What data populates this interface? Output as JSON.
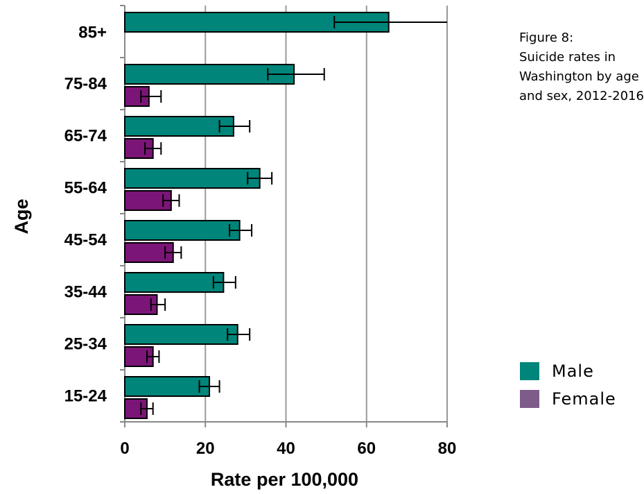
{
  "caption": {
    "lines": [
      "Figure 8:",
      "Suicide rates in",
      "Washington by age",
      "and sex, 2012-2016"
    ]
  },
  "colors": {
    "male": "#00857A",
    "female": "#7B1577",
    "female_legend": "#7E5C8A",
    "grid": "#999999",
    "axis": "#888888"
  },
  "chart_data": {
    "type": "bar",
    "orientation": "horizontal",
    "categories": [
      "85+",
      "75-84",
      "65-74",
      "55-64",
      "45-54",
      "35-44",
      "25-34",
      "15-24"
    ],
    "series": [
      {
        "name": "Male",
        "values": [
          65.5,
          42.0,
          27.0,
          33.5,
          28.5,
          24.5,
          28.0,
          21.0
        ],
        "error_low": [
          52.0,
          35.5,
          23.5,
          30.5,
          26.0,
          22.0,
          25.5,
          18.5
        ],
        "error_high": [
          80.0,
          49.5,
          31.0,
          36.5,
          31.5,
          27.5,
          31.0,
          23.5
        ]
      },
      {
        "name": "Female",
        "values": [
          null,
          6.0,
          7.0,
          11.5,
          12.0,
          8.0,
          7.0,
          5.5
        ],
        "error_low": [
          null,
          4.0,
          5.0,
          9.5,
          10.0,
          6.5,
          5.5,
          4.0
        ],
        "error_high": [
          null,
          9.0,
          9.0,
          13.5,
          14.0,
          10.0,
          8.5,
          7.0
        ]
      }
    ],
    "xlabel": "Rate per 100,000",
    "ylabel": "Age",
    "xlim": [
      0,
      80
    ],
    "xticks": [
      "0",
      "20",
      "40",
      "60",
      "80"
    ],
    "grid": true,
    "legend": {
      "position": "right",
      "entries": [
        "Male",
        "Female"
      ]
    }
  }
}
